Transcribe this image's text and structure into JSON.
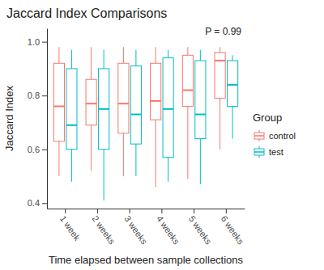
{
  "chart_data": {
    "type": "box",
    "title": "Jaccard Index Comparisons",
    "x_label": "Time elapsed between sample collections",
    "y_label": "Jaccard Index",
    "annotations": [
      "P = 0.99"
    ],
    "legend_title": "Group",
    "legend": "right",
    "grid": false,
    "categories": [
      "1 week",
      "2 weeks",
      "3 weeks",
      "4 weeks",
      "5 weeks",
      "6 weeks"
    ],
    "series": [
      {
        "name": "control",
        "color": "#F8766D",
        "min": [
          0.5,
          0.52,
          0.5,
          0.46,
          0.49,
          0.6
        ],
        "q1": [
          0.63,
          0.69,
          0.66,
          0.71,
          0.76,
          0.79
        ],
        "median": [
          0.76,
          0.77,
          0.77,
          0.78,
          0.82,
          0.93
        ],
        "q3": [
          0.92,
          0.86,
          0.92,
          0.92,
          0.95,
          0.96
        ],
        "max": [
          0.98,
          0.98,
          0.98,
          0.98,
          0.98,
          0.98
        ]
      },
      {
        "name": "test",
        "color": "#00BFC4",
        "min": [
          0.48,
          0.41,
          0.5,
          0.48,
          0.47,
          0.64
        ],
        "q1": [
          0.6,
          0.6,
          0.62,
          0.57,
          0.64,
          0.76
        ],
        "median": [
          0.69,
          0.75,
          0.73,
          0.75,
          0.73,
          0.84
        ],
        "q3": [
          0.9,
          0.9,
          0.91,
          0.94,
          0.93,
          0.93
        ],
        "max": [
          0.97,
          0.97,
          0.97,
          0.97,
          0.97,
          0.95
        ]
      }
    ],
    "ylim": [
      0.38,
      1.05
    ],
    "yticks": [
      0.4,
      0.6,
      0.8,
      {
        "value": 1,
        "label": "1.0"
      }
    ]
  }
}
